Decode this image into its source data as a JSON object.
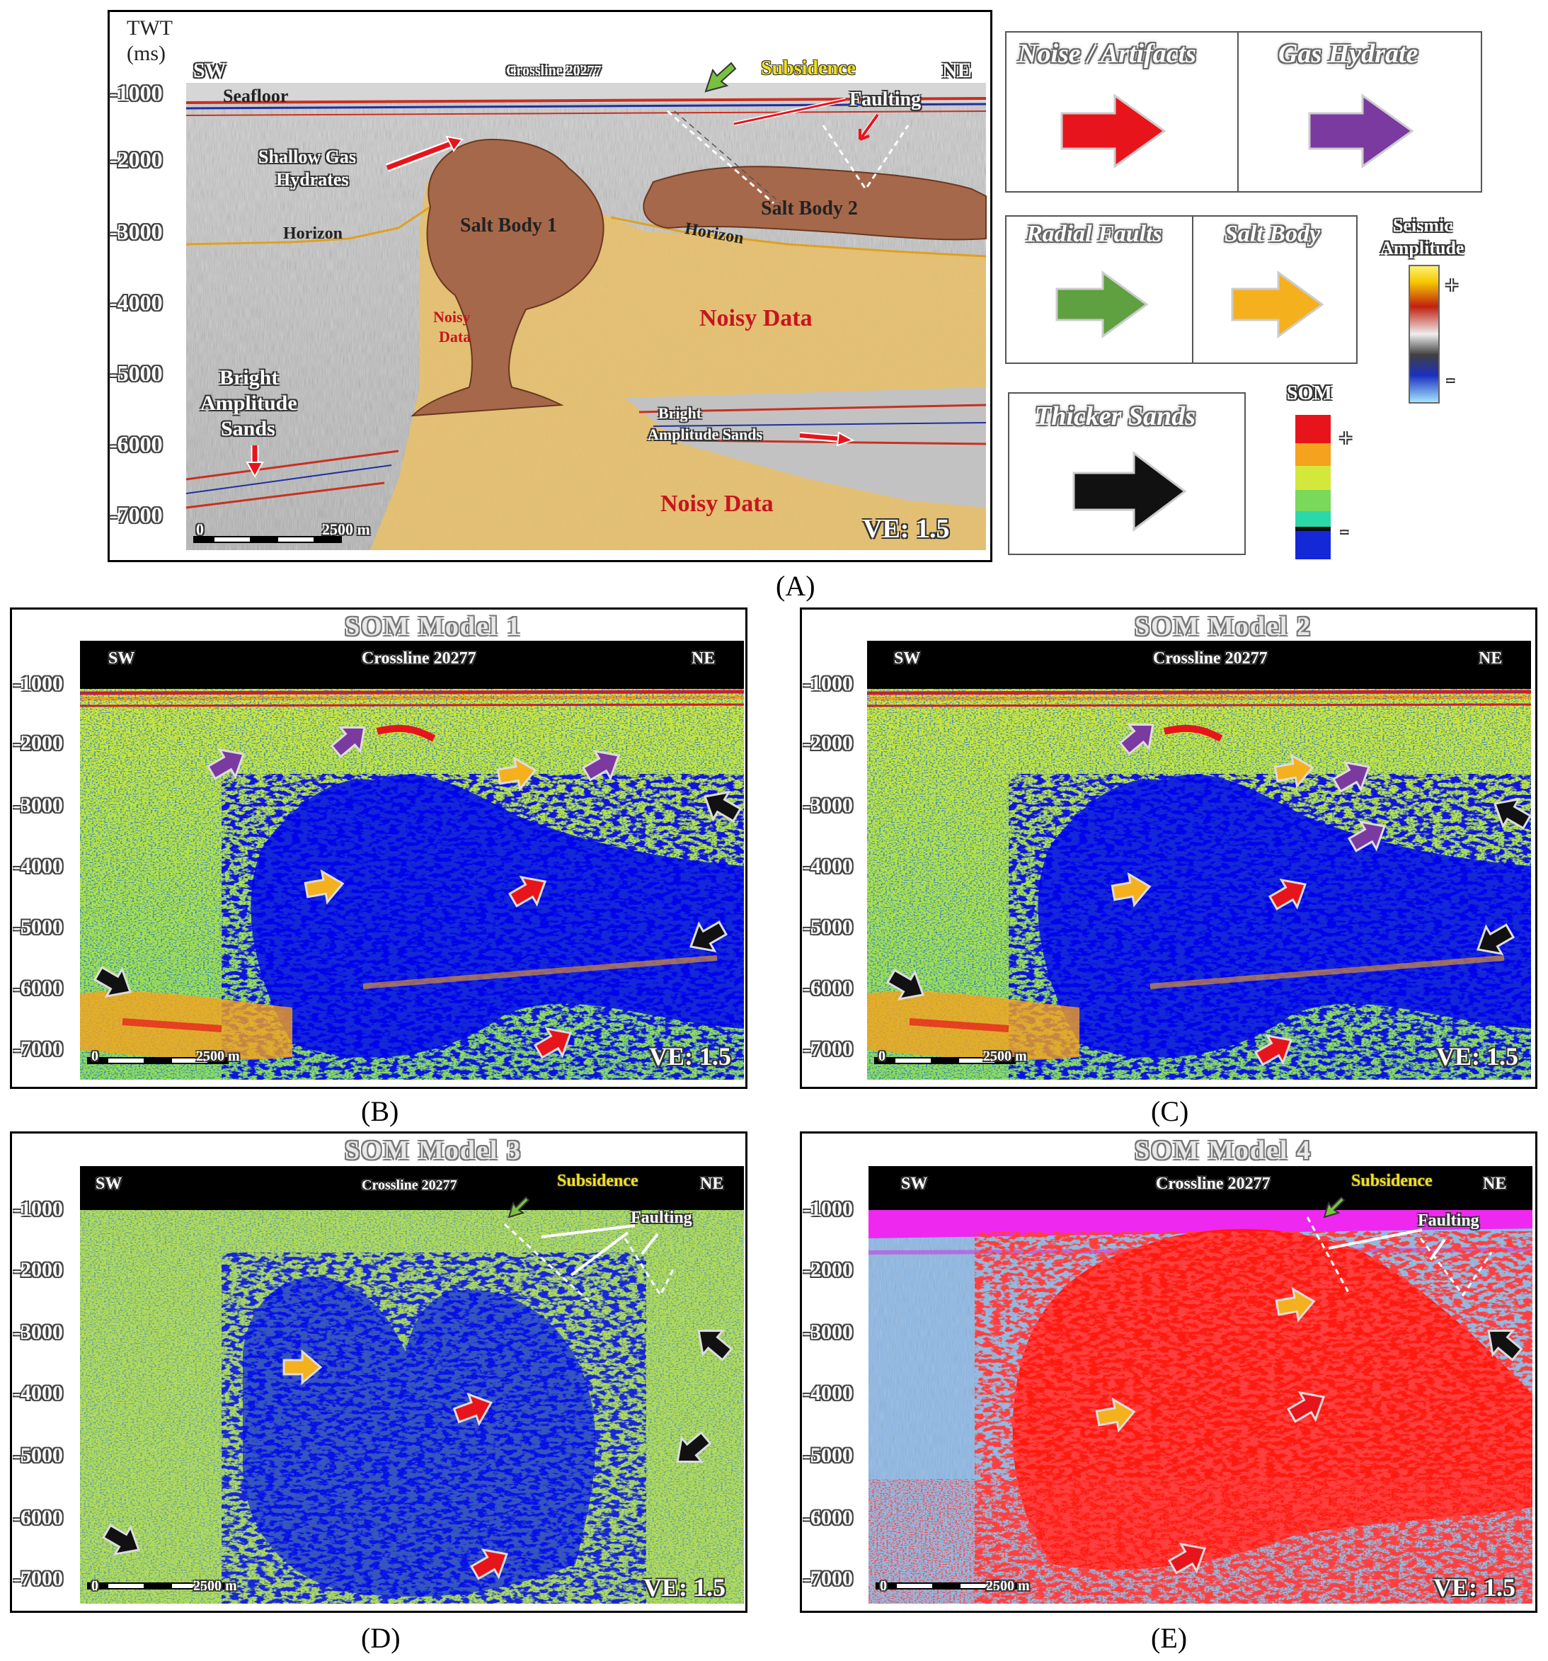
{
  "panelA": {
    "twt_label": "TWT",
    "ms_label": "(ms)",
    "sw": "SW",
    "ne": "NE",
    "crossline": "Crossline 20277",
    "subsidence": "Subsidence",
    "seafloor": "Seafloor",
    "faulting": "Faulting",
    "shallow_gas": "Shallow Gas",
    "hydrates": "Hydrates",
    "salt_body_1": "Salt Body 1",
    "salt_body_2": "Salt Body 2",
    "horizon_left": "Horizon",
    "horizon_right": "Horizon",
    "noisy_small_1": "Noisy",
    "noisy_small_2": "Data",
    "noisy_data_1": "Noisy Data",
    "noisy_data_2": "Noisy Data",
    "bright_left_1": "Bright",
    "bright_left_2": "Amplitude",
    "bright_left_3": "Sands",
    "bright_right_1": "Bright",
    "bright_right_2": "Amplitude Sands",
    "scale_zero": "0",
    "scale_len": "2500 m",
    "ve": "VE: 1.5",
    "ticks": [
      "-1000",
      "-2000",
      "-3000",
      "-4000",
      "-5000",
      "-6000",
      "-7000"
    ],
    "caption": "(A)"
  },
  "legend": {
    "noise": "Noise / Artifacts",
    "gas_hydrate": "Gas Hydrate",
    "radial_faults": "Radial Faults",
    "salt_body": "Salt Body",
    "thicker_sands": "Thicker Sands",
    "seismic_1": "Seismic",
    "seismic_2": "Amplitude",
    "som": "SOM",
    "plus": "+",
    "minus": "-",
    "colors": {
      "noise": "#e8141c",
      "gas": "#7a3aa0",
      "faults": "#5fa040",
      "salt": "#f5b01e",
      "sands": "#111111"
    }
  },
  "panels": [
    {
      "title": "SOM Model 1",
      "sw": "SW",
      "crossline": "Crossline 20277",
      "ne": "NE",
      "zero": "0",
      "scale": "2500 m",
      "ve": "VE: 1.5",
      "caption": "(B)",
      "ticks": [
        "-1000",
        "-2000",
        "-3000",
        "-4000",
        "-5000",
        "-6000",
        "-7000"
      ]
    },
    {
      "title": "SOM Model 2",
      "sw": "SW",
      "crossline": "Crossline 20277",
      "ne": "NE",
      "zero": "0",
      "scale": "2500 m",
      "ve": "VE: 1.5",
      "caption": "(C)",
      "ticks": [
        "-1000",
        "-2000",
        "-3000",
        "-4000",
        "-5000",
        "-6000",
        "-7000"
      ]
    },
    {
      "title": "SOM Model 3",
      "sw": "SW",
      "crossline": "Crossline 20277",
      "ne": "NE",
      "zero": "0",
      "scale": "2500 m",
      "ve": "VE: 1.5",
      "caption": "(D)",
      "subsidence": "Subsidence",
      "faulting": "Faulting",
      "ticks": [
        "-1000",
        "-2000",
        "-3000",
        "-4000",
        "-5000",
        "-6000",
        "-7000"
      ]
    },
    {
      "title": "SOM Model 4",
      "sw": "SW",
      "crossline": "Crossline 20277",
      "ne": "NE",
      "zero": "0",
      "scale": "2500 m",
      "ve": "VE: 1.5",
      "caption": "(E)",
      "subsidence": "Subsidence",
      "faulting": "Faulting",
      "ticks": [
        "-1000",
        "-2000",
        "-3000",
        "-4000",
        "-5000",
        "-6000",
        "-7000"
      ]
    }
  ]
}
